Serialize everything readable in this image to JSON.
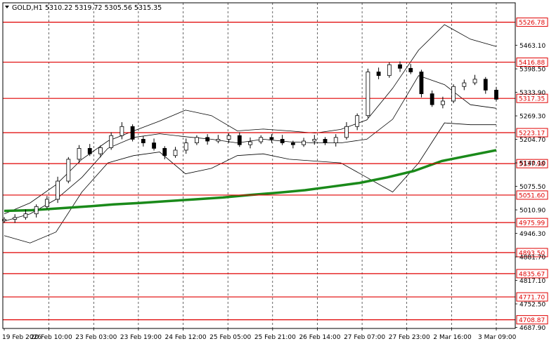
{
  "header": {
    "symbol_label": "GOLD,H1",
    "ohlc": "5310.22 5319.72 5305.56 5315.35"
  },
  "chart_data": {
    "type": "candlestick",
    "symbol": "GOLD",
    "timeframe": "H1",
    "ohlc": {
      "open": 5310.22,
      "high": 5319.72,
      "low": 5305.56,
      "close": 5315.35
    },
    "x_tick_labels": [
      "19 Feb 2026",
      "20 Feb 10:00",
      "23 Feb 03:00",
      "23 Feb 19:00",
      "24 Feb 12:00",
      "25 Feb 05:00",
      "25 Feb 21:00",
      "26 Feb 14:00",
      "27 Feb 07:00",
      "27 Feb 23:00",
      "2 Mar 16:00",
      "3 Mar 09:00"
    ],
    "y_tick_labels": [
      "5463.10",
      "5398.50",
      "5333.90",
      "5269.30",
      "5204.70",
      "5140.10",
      "5075.50",
      "5010.90",
      "4946.30",
      "4881.70",
      "4817.10",
      "4752.50",
      "4687.90"
    ],
    "y_ticks": [
      5463.1,
      5398.5,
      5333.9,
      5269.3,
      5204.7,
      5140.1,
      5075.5,
      5010.9,
      4946.3,
      4881.7,
      4817.1,
      4752.5,
      4687.9
    ],
    "ylim": [
      4685,
      5580
    ],
    "level_labels": [
      "5526.78",
      "5416.88",
      "5317.35",
      "5223.17",
      "5137.98",
      "5051.60",
      "4975.99",
      "4893.50",
      "4835.67",
      "4771.70",
      "4708.87"
    ],
    "levels": [
      5526.78,
      5416.88,
      5317.35,
      5223.17,
      5137.98,
      5051.6,
      4975.99,
      4893.5,
      4835.67,
      4771.7,
      4708.87
    ],
    "level_color": "#e00000",
    "ma_color": "#1a8a1a",
    "bollinger_color": "#000000",
    "moving_average": [
      5008,
      5010,
      5015,
      5020,
      5026,
      5030,
      5035,
      5040,
      5045,
      5052,
      5058,
      5065,
      5075,
      5085,
      5100,
      5118,
      5145,
      5160,
      5175
    ],
    "bollinger_upper": [
      5000,
      5030,
      5080,
      5150,
      5200,
      5228,
      5255,
      5285,
      5270,
      5228,
      5233,
      5228,
      5222,
      5232,
      5258,
      5345,
      5450,
      5520,
      5480,
      5460
    ],
    "bollinger_middle": [
      4980,
      5000,
      5040,
      5100,
      5180,
      5210,
      5220,
      5212,
      5205,
      5195,
      5205,
      5198,
      5195,
      5195,
      5205,
      5260,
      5380,
      5355,
      5300,
      5290
    ],
    "bollinger_lower": [
      4940,
      4920,
      4950,
      5060,
      5140,
      5160,
      5170,
      5110,
      5125,
      5160,
      5165,
      5150,
      5145,
      5140,
      5100,
      5060,
      5140,
      5250,
      5245,
      5245
    ],
    "closes": [
      4985,
      4990,
      5000,
      5020,
      5040,
      5090,
      5150,
      5180,
      5165,
      5182,
      5215,
      5240,
      5205,
      5195,
      5180,
      5160,
      5175,
      5195,
      5210,
      5200,
      5205,
      5215,
      5190,
      5198,
      5210,
      5205,
      5195,
      5190,
      5200,
      5205,
      5195,
      5210,
      5240,
      5270,
      5390,
      5380,
      5410,
      5400,
      5390,
      5330,
      5300,
      5310,
      5350,
      5360,
      5370,
      5340,
      5315
    ]
  }
}
